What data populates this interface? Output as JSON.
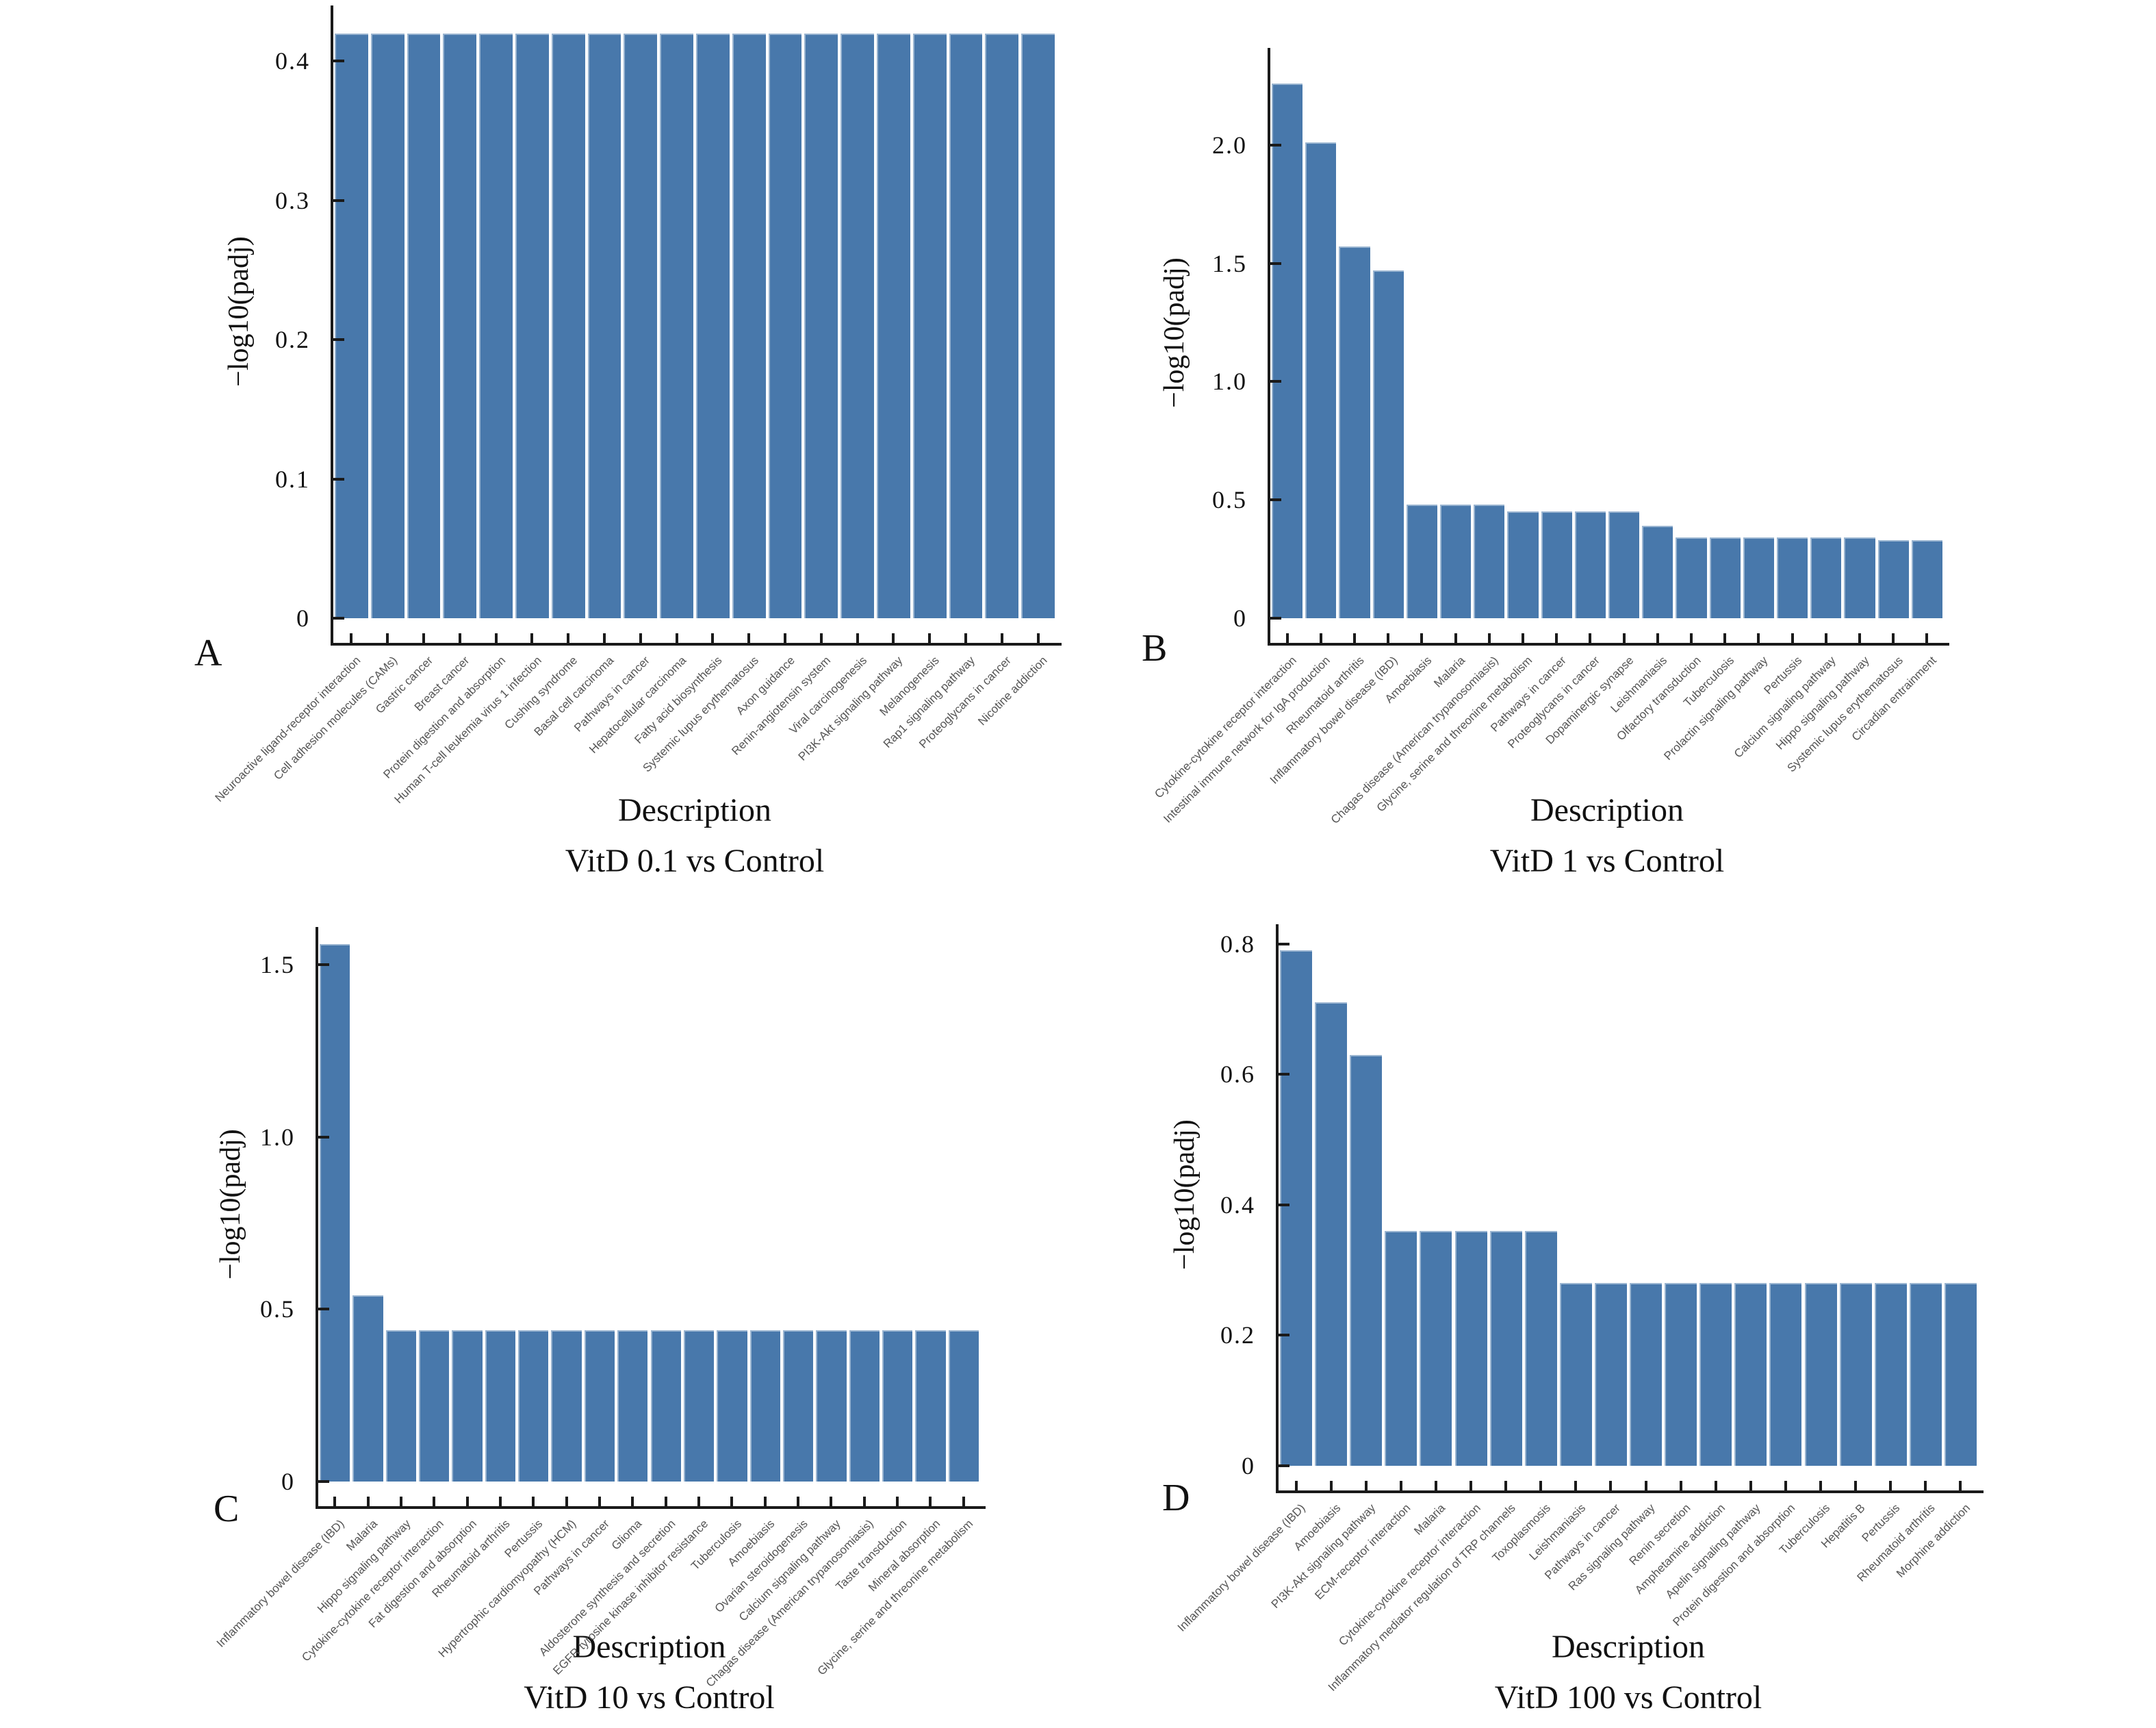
{
  "figure": {
    "background": "#ffffff",
    "bar_color": "#4878ab",
    "bar_edge_color": "#ffffff",
    "axis_color": "#1a1a1a",
    "category_label_color": "#555555"
  },
  "chart_data": [
    {
      "panel": "A",
      "type": "bar",
      "title": "Description",
      "subtitle": "VitD 0.1 vs Control",
      "ylabel": "−log10(padj)",
      "ylim": [
        0,
        0.44
      ],
      "ytick_values": [
        0,
        0.1,
        0.2,
        0.3,
        0.4
      ],
      "ytick_labels": [
        "0",
        "0.1",
        "0.2",
        "0.3",
        "0.4"
      ],
      "grid": false,
      "legend": false,
      "categories": [
        "Neuroactive ligand-receptor interaction",
        "Cell adhesion molecules (CAMs)",
        "Gastric cancer",
        "Breast cancer",
        "Protein digestion and absorption",
        "Human T-cell leukemia virus 1 infection",
        "Cushing syndrome",
        "Basal cell carcinoma",
        "Pathways in cancer",
        "Hepatocellular carcinoma",
        "Fatty acid biosynthesis",
        "Systemic lupus erythematosus",
        "Axon guidance",
        "Renin-angiotensin system",
        "Viral carcinogenesis",
        "PI3K-Akt signaling pathway",
        "Melanogenesis",
        "Rap1 signaling pathway",
        "Proteoglycans in cancer",
        "Nicotine addiction"
      ],
      "values": [
        0.42,
        0.42,
        0.42,
        0.42,
        0.42,
        0.42,
        0.42,
        0.42,
        0.42,
        0.42,
        0.42,
        0.42,
        0.42,
        0.42,
        0.42,
        0.42,
        0.42,
        0.42,
        0.42,
        0.42
      ]
    },
    {
      "panel": "B",
      "type": "bar",
      "title": "Description",
      "subtitle": "VitD 1 vs Control",
      "ylabel": "−log10(padj)",
      "ylim": [
        0,
        2.41
      ],
      "ytick_values": [
        0,
        0.5,
        1.0,
        1.5,
        2.0
      ],
      "ytick_labels": [
        "0",
        "0.5",
        "1.0",
        "1.5",
        "2.0"
      ],
      "grid": false,
      "legend": false,
      "categories": [
        "Cytokine-cytokine receptor interaction",
        "Intestinal immune network for IgA production",
        "Rheumatoid arthritis",
        "Inflammatory bowel disease (IBD)",
        "Amoebiasis",
        "Malaria",
        "Chagas disease (American trypanosomiasis)",
        "Glycine, serine and threonine metabolism",
        "Pathways in cancer",
        "Proteoglycans in cancer",
        "Dopaminergic synapse",
        "Leishmaniasis",
        "Olfactory transduction",
        "Tuberculosis",
        "Prolactin signaling pathway",
        "Pertussis",
        "Calcium signaling pathway",
        "Hippo signaling pathway",
        "Systemic lupus erythematosus",
        "Circadian entrainment"
      ],
      "values": [
        2.26,
        2.01,
        1.57,
        1.47,
        0.48,
        0.48,
        0.48,
        0.45,
        0.45,
        0.45,
        0.45,
        0.39,
        0.34,
        0.34,
        0.34,
        0.34,
        0.34,
        0.34,
        0.33,
        0.33
      ]
    },
    {
      "panel": "C",
      "type": "bar",
      "title": "Description",
      "subtitle": "VitD 10 vs Control",
      "ylabel": "−log10(padj)",
      "ylim": [
        0,
        1.61
      ],
      "ytick_values": [
        0,
        0.5,
        1.0,
        1.5
      ],
      "ytick_labels": [
        "0",
        "0.5",
        "1.0",
        "1.5"
      ],
      "grid": false,
      "legend": false,
      "categories": [
        "Inflammatory bowel disease (IBD)",
        "Malaria",
        "Hippo signaling pathway",
        "Cytokine-cytokine receptor interaction",
        "Fat digestion and absorption",
        "Rheumatoid arthritis",
        "Pertussis",
        "Hypertrophic cardiomyopathy (HCM)",
        "Pathways in cancer",
        "Glioma",
        "Aldosterone synthesis and secretion",
        "EGFR tyrosine kinase inhibitor resistance",
        "Tuberculosis",
        "Amoebiasis",
        "Ovarian steroidogenesis",
        "Calcium signaling pathway",
        "Chagas disease (American trypanosomiasis)",
        "Taste transduction",
        "Mineral absorption",
        "Glycine, serine and threonine metabolism"
      ],
      "values": [
        1.56,
        0.54,
        0.44,
        0.44,
        0.44,
        0.44,
        0.44,
        0.44,
        0.44,
        0.44,
        0.44,
        0.44,
        0.44,
        0.44,
        0.44,
        0.44,
        0.44,
        0.44,
        0.44,
        0.44
      ]
    },
    {
      "panel": "D",
      "type": "bar",
      "title": "Description",
      "subtitle": "VitD 100 vs Control",
      "ylabel": "−log10(padj)",
      "ylim": [
        0,
        0.83
      ],
      "ytick_values": [
        0,
        0.2,
        0.4,
        0.6,
        0.8
      ],
      "ytick_labels": [
        "0",
        "0.2",
        "0.4",
        "0.6",
        "0.8"
      ],
      "grid": false,
      "legend": false,
      "categories": [
        "Inflammatory bowel disease (IBD)",
        "Amoebiasis",
        "PI3K-Akt signaling pathway",
        "ECM-receptor interaction",
        "Malaria",
        "Cytokine-cytokine receptor interaction",
        "Inflammatory mediator regulation of TRP channels",
        "Toxoplasmosis",
        "Leishmaniasis",
        "Pathways in cancer",
        "Ras signaling pathway",
        "Renin secretion",
        "Amphetamine addiction",
        "Apelin signaling pathway",
        "Protein digestion and absorption",
        "Tuberculosis",
        "Hepatitis B",
        "Pertussis",
        "Rheumatoid arthritis",
        "Morphine addiction"
      ],
      "values": [
        0.79,
        0.71,
        0.63,
        0.36,
        0.36,
        0.36,
        0.36,
        0.36,
        0.28,
        0.28,
        0.28,
        0.28,
        0.28,
        0.28,
        0.28,
        0.28,
        0.28,
        0.28,
        0.28,
        0.28
      ]
    }
  ]
}
